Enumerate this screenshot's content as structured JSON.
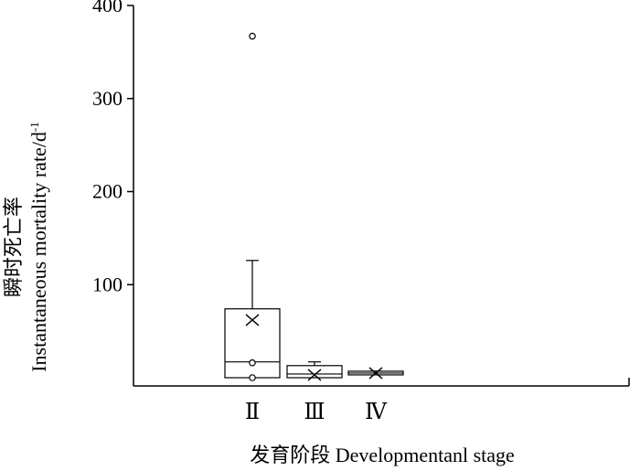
{
  "chart_data": {
    "type": "box",
    "title": "",
    "xlabel": "发育阶段 Developmentanl stage",
    "ylabel_cn": "瞬时死亡率",
    "ylabel_en": "Instantaneous mortality rate/d",
    "ylabel_sup": "-1",
    "ylim": [
      -8,
      400
    ],
    "yticks": [
      100,
      200,
      300,
      400
    ],
    "categories": [
      "Ⅱ",
      "Ⅲ",
      "Ⅳ"
    ],
    "boxes": [
      {
        "category": "Ⅱ",
        "min": 0,
        "q1": 0,
        "median": 17,
        "q3": 74,
        "max": 126,
        "mean": 62,
        "outliers": [
          367,
          16,
          0
        ]
      },
      {
        "category": "Ⅲ",
        "min": 0,
        "q1": 0,
        "median": 4,
        "q3": 13,
        "max": 17,
        "mean": 3,
        "outliers": []
      },
      {
        "category": "Ⅳ",
        "min": 2,
        "q1": 3,
        "median": 5,
        "q3": 7,
        "max": 7,
        "mean": 5,
        "outliers": []
      }
    ],
    "grid": false,
    "legend": "none"
  }
}
